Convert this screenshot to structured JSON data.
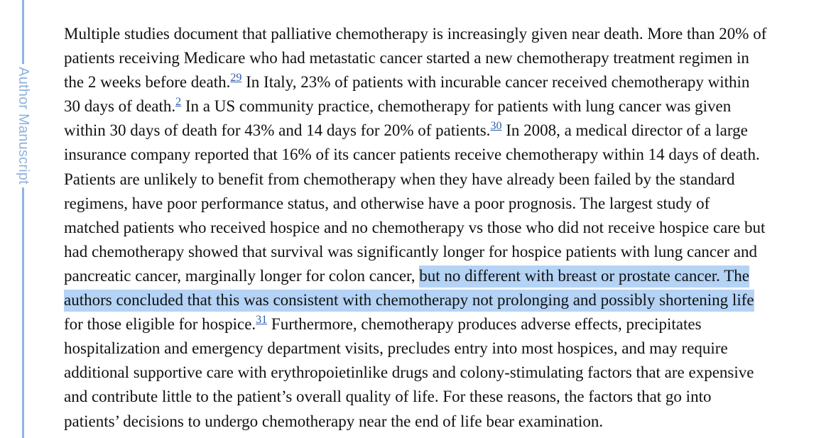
{
  "side_label": "Author Manuscript",
  "refs": {
    "r29": "29",
    "r2": "2",
    "r30": "30",
    "r31": "31"
  },
  "lines": {
    "l1": "Multiple studies document that palliative chemotherapy is increasingly given near death. More than 20% of",
    "l2": "patients receiving Medicare who had metastatic cancer started a new chemotherapy treatment regimen in",
    "l3a": "the 2 weeks before death.",
    "l3b": " In Italy, 23% of patients with incurable cancer received chemotherapy within",
    "l4a": "30 days of death.",
    "l4b": " In a US community practice, chemotherapy for patients with lung cancer was given",
    "l5a": "within 30 days of death for 43% and 14 days for 20% of patients.",
    "l5b": " In 2008, a medical director of a large",
    "l6": "insurance company reported that 16% of its cancer patients receive chemotherapy within 14 days of death.",
    "l7": "Patients are unlikely to benefit from chemotherapy when they have already been failed by the standard",
    "l8": "regimens, have poor performance status, and otherwise have a poor prognosis. The largest study of",
    "l9": "matched patients who received hospice and no chemotherapy vs those who did not receive hospice care but",
    "l10": "had chemotherapy showed that survival was significantly longer for hospice patients with lung cancer and",
    "l11a": "pancreatic cancer, marginally longer for colon cancer, ",
    "l11b": "but no different with breast or prostate cancer. The",
    "l12": "authors concluded that this was consistent with chemotherapy not prolonging and possibly shortening life",
    "l13a": "for those eligible for hospice.",
    "l13b": " Furthermore, chemotherapy produces adverse effects, precipitates",
    "l14": "hospitalization and emergency department visits, precludes entry into most hospices, and may require",
    "l15": "additional supportive care with erythropoietinlike drugs and colony-stimulating factors that are expensive",
    "l16": "and contribute little to the patient’s overall quality of life. For these reasons, the factors that go into",
    "l17": "patients’ decisions to undergo chemotherapy near the end of life bear examination."
  },
  "colors": {
    "margin_accent": "#8fb3dc",
    "selection_highlight": "#b4d3f5",
    "reference_link": "#2a5db0",
    "body_text": "#111111"
  }
}
